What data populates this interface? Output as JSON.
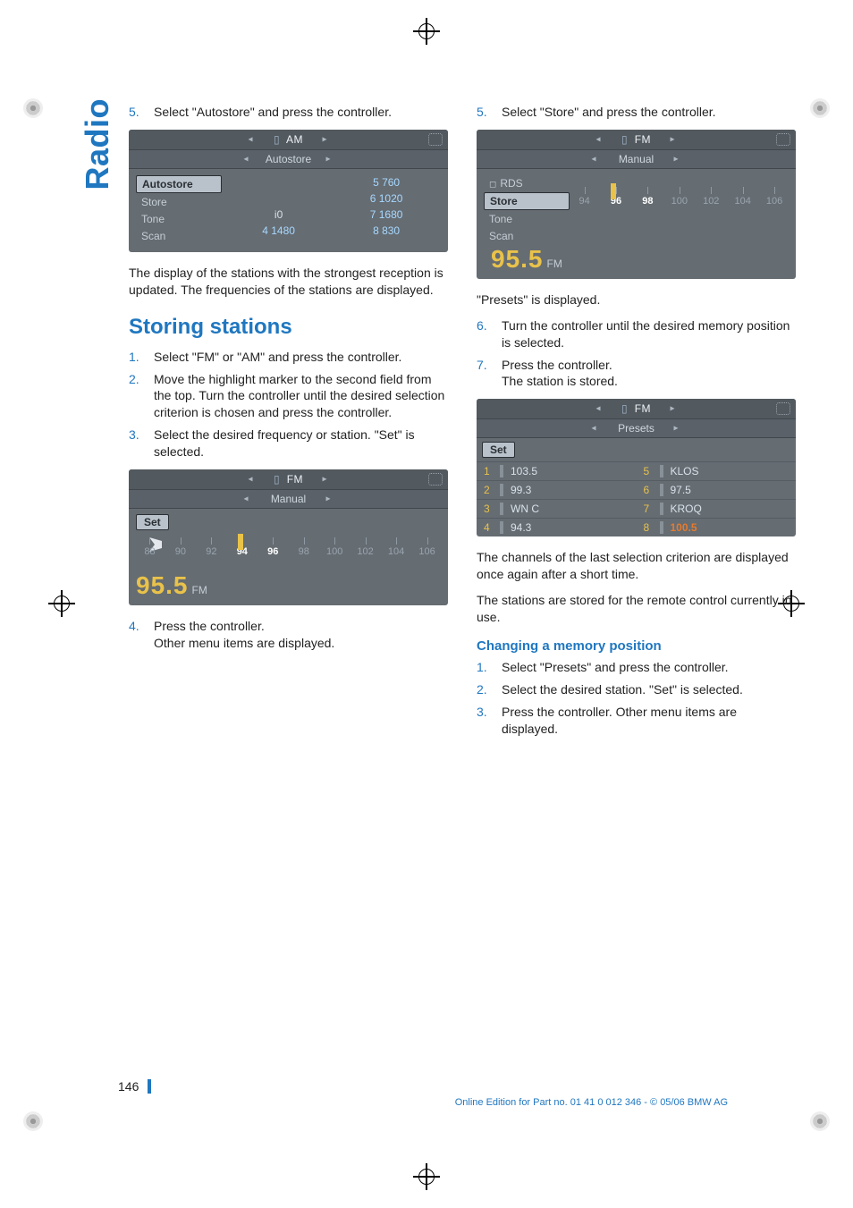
{
  "tab_label": "Radio",
  "page_number": "146",
  "footer_text": "Online Edition for Part no. 01 41 0 012 346 - © 05/06 BMW AG",
  "colors": {
    "brand_blue": "#1f77c0",
    "shot_bg": "#656c72",
    "shot_top": "#52595f",
    "accent_yellow": "#e9c24a",
    "accent_orange": "#e67a2e"
  },
  "left": {
    "step5": "Select \"Autostore\" and press the controller.",
    "shot1": {
      "band": "AM",
      "submenu": "Autostore",
      "menu": [
        "Autostore",
        "Store",
        "Tone",
        "Scan"
      ],
      "menu_selected": 0,
      "cells": [
        [
          "",
          "5 760"
        ],
        [
          "",
          "6 1020"
        ],
        [
          "i0",
          "7 1680"
        ],
        [
          "4 1480",
          "8 830"
        ]
      ]
    },
    "para1": "The display of the stations with the strongest reception is updated. The frequencies of the stations are displayed.",
    "h2": "Storing stations",
    "steps_a": [
      "Select \"FM\" or \"AM\" and press the controller.",
      "Move the highlight marker to the second field from the top. Turn the controller until the desired selection criterion is chosen and press the controller.",
      "Select the desired frequency or station. \"Set\" is selected."
    ],
    "shot2": {
      "band": "FM",
      "submenu": "Manual",
      "set_label": "Set",
      "dial_labels": [
        "88",
        "90",
        "92",
        "94",
        "96",
        "98",
        "100",
        "102",
        "104",
        "106"
      ],
      "dial_active": [
        3,
        4
      ],
      "needle_pos_pct": 34,
      "cursor_pos_pct": 4,
      "freq": "95.5",
      "freq_band": "FM"
    },
    "step4": "Press the controller.",
    "step4b": "Other menu items are displayed."
  },
  "right": {
    "step5": "Select \"Store\" and press the controller.",
    "shot3": {
      "band": "FM",
      "submenu": "Manual",
      "menu": [
        "RDS",
        "Store",
        "Tone",
        "Scan"
      ],
      "menu_selected": 1,
      "dial_labels": [
        "94",
        "96",
        "98",
        "100",
        "102",
        "104",
        "106"
      ],
      "dial_active": [
        1,
        2
      ],
      "needle_pos_pct": 18,
      "freq": "95.5",
      "freq_band": "FM"
    },
    "after5": "\"Presets\" is displayed.",
    "step6": "Turn the controller until the desired memory position is selected.",
    "step7": "Press the controller.",
    "step7b": "The station is stored.",
    "shot4": {
      "band": "FM",
      "submenu": "Presets",
      "set_label": "Set",
      "presets": [
        {
          "n": "1",
          "v": "103.5"
        },
        {
          "n": "5",
          "v": "KLOS"
        },
        {
          "n": "2",
          "v": "99.3"
        },
        {
          "n": "6",
          "v": "97.5"
        },
        {
          "n": "3",
          "v": "WN C"
        },
        {
          "n": "7",
          "v": "KROQ"
        },
        {
          "n": "4",
          "v": "94.3"
        },
        {
          "n": "8",
          "v": "100.5",
          "hi": true
        }
      ]
    },
    "para2": "The channels of the last selection criterion are displayed once again after a short time.",
    "para3": "The stations are stored for the remote control currently in use.",
    "h3": "Changing a memory position",
    "steps_b": [
      "Select \"Presets\" and press the controller.",
      "Select the desired station. \"Set\" is selected.",
      "Press the controller. Other menu items are displayed."
    ]
  }
}
